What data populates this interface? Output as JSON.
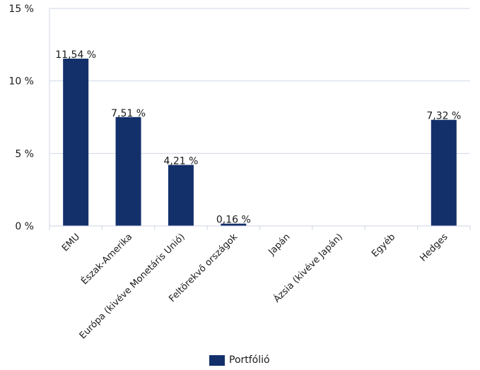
{
  "chart_data": {
    "type": "bar",
    "categories": [
      "EMU",
      "Észak-Amerika",
      "Európa (kivéve Monetáris Unió)",
      "Feltörekvő országok",
      "Japán",
      "Ázsia (kivéve Japán)",
      "Egyéb",
      "Hedges"
    ],
    "series": [
      {
        "name": "Portfólió",
        "values": [
          11.54,
          7.51,
          4.21,
          0.16,
          0,
          0,
          0,
          7.32
        ],
        "labels": [
          "11,54 %",
          "7,51 %",
          "4,21 %",
          "0,16 %",
          "",
          "",
          "",
          "7,32 %"
        ]
      }
    ],
    "ylim": [
      0,
      15
    ],
    "yticks": [
      0,
      5,
      10,
      15
    ],
    "ytick_labels": [
      "0 %",
      "5 %",
      "10 %",
      "15 %"
    ],
    "grid": true,
    "legend_position": "bottom",
    "bar_color": "#13306b",
    "grid_color": "#cfd6e6"
  }
}
